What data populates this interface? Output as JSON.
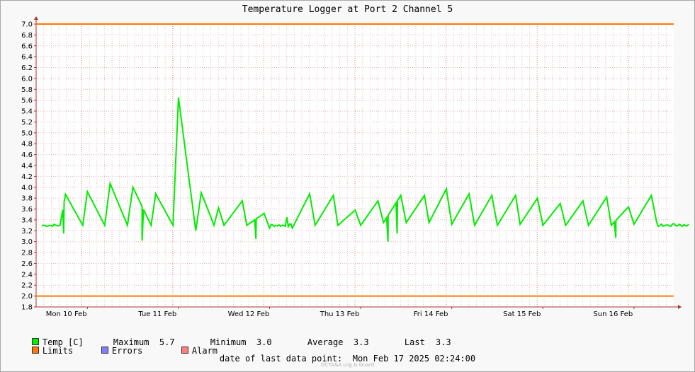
{
  "chart_data": {
    "type": "line",
    "title": "Temperature Logger at Port 2 Channel 5",
    "ylim": [
      1.8,
      7.0
    ],
    "yticks": [
      "7.0",
      "6.8",
      "6.6",
      "6.4",
      "6.2",
      "6.0",
      "5.8",
      "5.6",
      "5.4",
      "5.2",
      "5.0",
      "4.8",
      "4.6",
      "4.4",
      "4.2",
      "4.0",
      "3.8",
      "3.6",
      "3.4",
      "3.2",
      "3.0",
      "2.8",
      "2.6",
      "2.4",
      "2.2",
      "2.0",
      "1.8"
    ],
    "xlabels": [
      "Mon 10 Feb",
      "Tue 11 Feb",
      "Wed 12 Feb",
      "Thu 13 Feb",
      "Fri 14 Feb",
      "Sat 15 Feb",
      "Sun 16 Feb"
    ],
    "grid": true,
    "limits": {
      "upper": 7.0,
      "lower": 2.0,
      "color": "#ff7700"
    },
    "series": [
      {
        "name": "Temp [C]",
        "color": "#00ee00",
        "baseline": 3.3,
        "x": [
          0,
          0.2,
          0.26,
          0.45,
          0.5,
          0.69,
          0.75,
          0.94,
          1.0,
          1.2,
          1.25,
          1.44,
          1.5,
          1.69,
          1.75,
          1.89,
          1.94,
          2.0,
          2.2,
          2.25,
          2.44,
          2.5,
          2.69,
          2.75,
          2.94,
          3.0,
          3.2,
          3.25,
          3.44,
          3.5,
          3.69,
          3.75,
          3.94,
          4.0,
          4.2,
          4.25,
          4.44,
          4.5,
          4.69,
          4.75,
          4.94,
          5.0,
          5.2,
          5.25,
          5.44,
          5.5,
          5.69,
          5.75,
          5.94,
          6.0,
          6.2,
          6.25,
          6.44,
          6.5,
          6.69,
          6.75,
          6.94,
          7.0,
          7.1
        ],
        "y": [
          3.3,
          3.3,
          3.87,
          3.3,
          3.92,
          3.3,
          4.07,
          3.3,
          4.0,
          3.3,
          3.88,
          3.3,
          5.65,
          3.2,
          3.9,
          3.3,
          3.62,
          3.3,
          3.75,
          3.3,
          3.52,
          3.25,
          3.45,
          3.25,
          3.88,
          3.3,
          3.85,
          3.3,
          3.58,
          3.3,
          3.75,
          3.35,
          3.85,
          3.35,
          3.85,
          3.35,
          3.97,
          3.32,
          3.88,
          3.3,
          3.85,
          3.3,
          3.85,
          3.32,
          3.8,
          3.3,
          3.7,
          3.3,
          3.75,
          3.3,
          3.82,
          3.3,
          3.64,
          3.32,
          3.85,
          3.35,
          3.33,
          3.32,
          3.32
        ],
        "dips": [
          {
            "x": 0.24,
            "y": 3.15
          },
          {
            "x": 1.1,
            "y": 3.02
          },
          {
            "x": 2.35,
            "y": 3.05
          },
          {
            "x": 3.8,
            "y": 3.0
          },
          {
            "x": 3.9,
            "y": 3.15
          },
          {
            "x": 6.3,
            "y": 3.07
          }
        ]
      }
    ],
    "stats": {
      "maximum_label": "Maximum",
      "maximum": "5.7",
      "minimum_label": "Minimum",
      "minimum": "3.0",
      "average_label": "Average",
      "average": "3.3",
      "last_label": "Last",
      "last": "3.3"
    }
  },
  "legend": {
    "temp": {
      "label": "Temp [C]",
      "color": "#00ee00"
    },
    "limits": {
      "label": "Limits",
      "color": "#ff7700"
    },
    "errors": {
      "label": "Errors",
      "color": "#7f7fff"
    },
    "alarm": {
      "label": "Alarm",
      "color": "#ff7f7f"
    }
  },
  "footer": {
    "label": "date of last data point:",
    "value": "Mon Feb 17 2025 02:24:00",
    "watermark": "OCTA&A Log & Guard"
  }
}
